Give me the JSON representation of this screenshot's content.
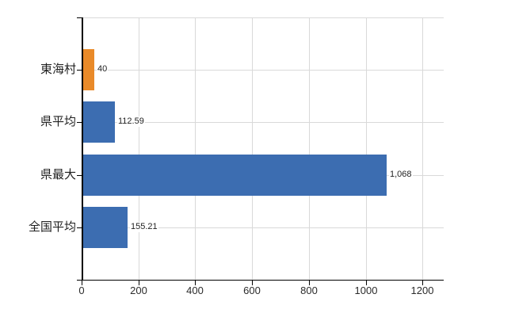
{
  "chart_data": {
    "type": "bar",
    "orientation": "horizontal",
    "title": "",
    "xlabel": "",
    "ylabel": "",
    "categories": [
      "東海村",
      "県平均",
      "県最大",
      "全国平均"
    ],
    "values": [
      40,
      112.59,
      1068,
      155.21
    ],
    "value_labels": [
      "40",
      "112.59",
      "1,068",
      "155.21"
    ],
    "bar_colors": [
      "#E98A29",
      "#3C6DB1",
      "#3C6DB1",
      "#3C6DB1"
    ],
    "x_ticks": [
      0,
      200,
      400,
      600,
      800,
      1000,
      1200
    ],
    "x_tick_labels": [
      "0",
      "200",
      "400",
      "600",
      "800",
      "1000",
      "1200"
    ],
    "xlim": [
      0,
      1274
    ],
    "grid": true,
    "legend_position": "none",
    "colors": {
      "highlight_bar": "#E98A29",
      "default_bar": "#3C6DB1",
      "gridline": "#D9D9D9",
      "axis": "#000000",
      "text": "#1F1F1F",
      "background": "#FFFFFF"
    }
  }
}
